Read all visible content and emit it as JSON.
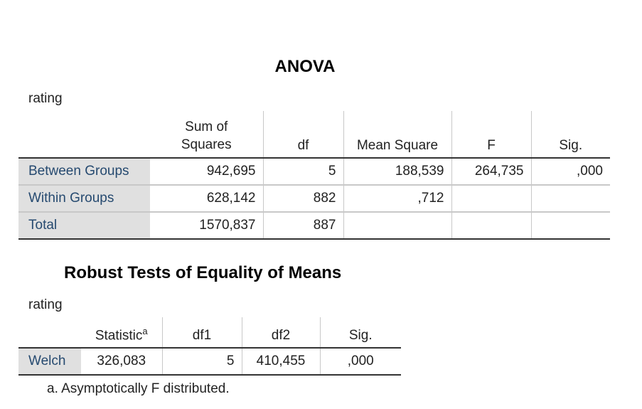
{
  "anova": {
    "title": "ANOVA",
    "variable": "rating",
    "headers": {
      "sum_of_squares_line1": "Sum of",
      "sum_of_squares_line2": "Squares",
      "df": "df",
      "mean_square": "Mean Square",
      "f": "F",
      "sig": "Sig."
    },
    "rows": [
      {
        "label": "Between Groups",
        "ss": "942,695",
        "df": "5",
        "ms": "188,539",
        "f": "264,735",
        "sig": ",000"
      },
      {
        "label": "Within Groups",
        "ss": "628,142",
        "df": "882",
        "ms": ",712",
        "f": "",
        "sig": ""
      },
      {
        "label": "Total",
        "ss": "1570,837",
        "df": "887",
        "ms": "",
        "f": "",
        "sig": ""
      }
    ]
  },
  "robust": {
    "title": "Robust Tests of Equality of Means",
    "variable": "rating",
    "headers": {
      "statistic": "Statistic",
      "statistic_sup": "a",
      "df1": "df1",
      "df2": "df2",
      "sig": "Sig."
    },
    "rows": [
      {
        "label": "Welch",
        "statistic": "326,083",
        "df1": "5",
        "df2": "410,455",
        "sig": ",000"
      }
    ],
    "footnote": "a. Asymptotically F distributed."
  }
}
